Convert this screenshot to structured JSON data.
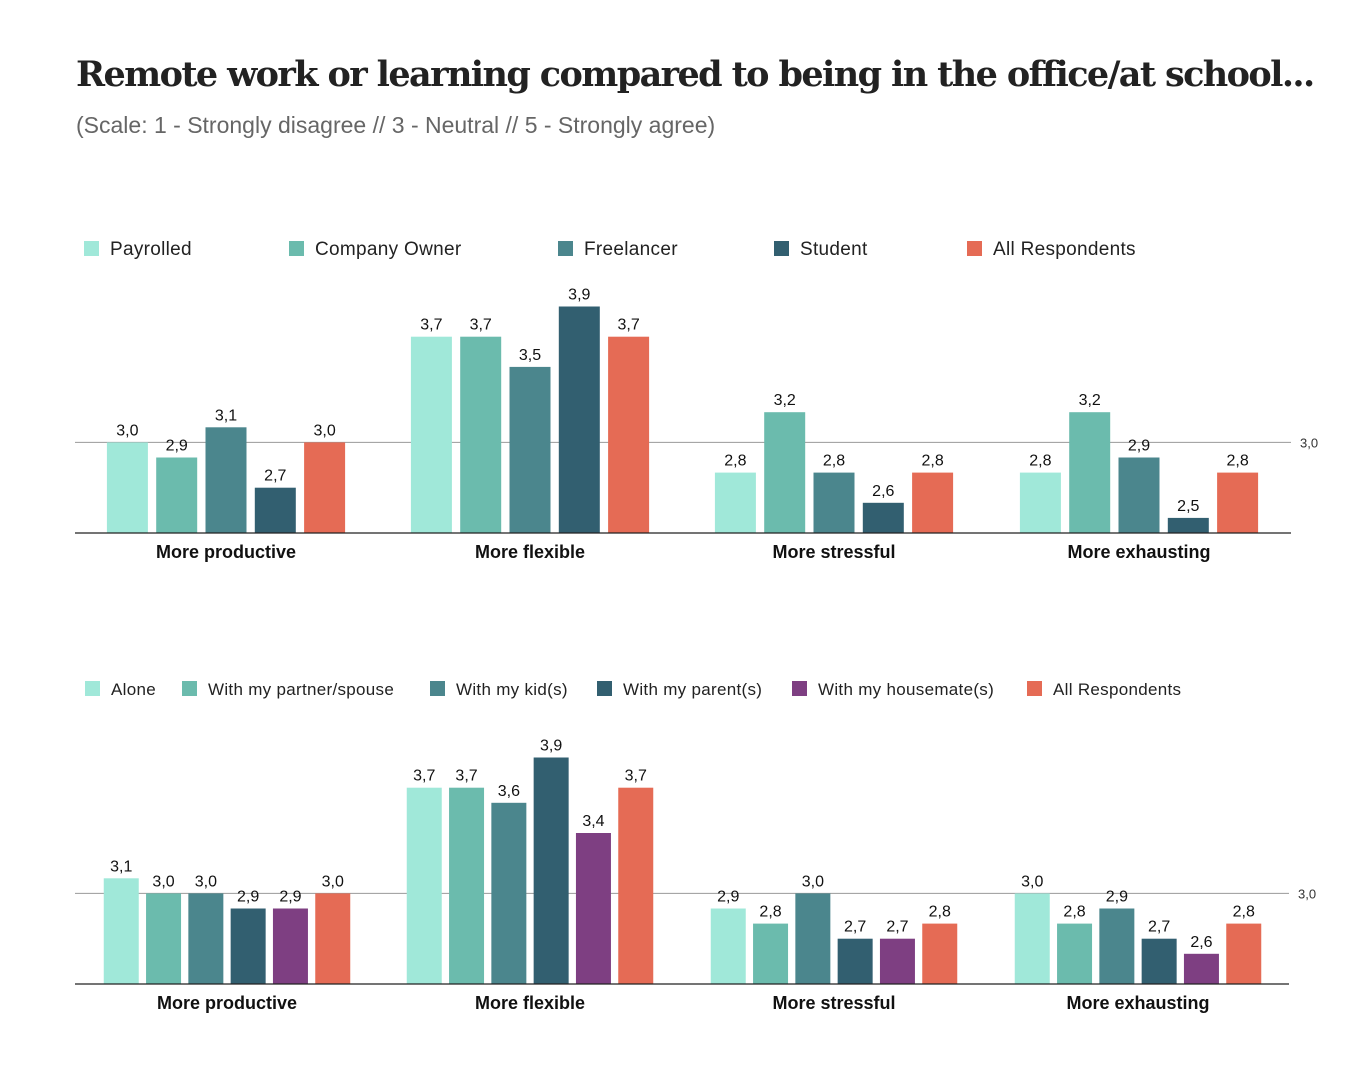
{
  "title": "Remote work or learning compared to being in the office/at school...",
  "subtitle": "(Scale: 1 - Strongly disagree //  3 - Neutral  //  5 - Strongly agree)",
  "chart_data": [
    {
      "type": "bar",
      "categories": [
        "More productive",
        "More flexible",
        "More stressful",
        "More exhausting"
      ],
      "reference_line": {
        "value": 3.0,
        "label": "3,0"
      },
      "ylim": [
        2.4,
        4.0
      ],
      "grid": false,
      "legend": "top",
      "series": [
        {
          "name": "Payrolled",
          "color": "#a0e8d9",
          "values": [
            3.0,
            3.7,
            2.8,
            2.8
          ],
          "labels": [
            "3,0",
            "3,7",
            "2,8",
            "2,8"
          ]
        },
        {
          "name": "Company Owner",
          "color": "#6bbbad",
          "values": [
            2.9,
            3.7,
            3.2,
            3.2
          ],
          "labels": [
            "2,9",
            "3,7",
            "3,2",
            "3,2"
          ]
        },
        {
          "name": "Freelancer",
          "color": "#4b868d",
          "values": [
            3.1,
            3.5,
            2.8,
            2.9
          ],
          "labels": [
            "3,1",
            "3,5",
            "2,8",
            "2,9"
          ]
        },
        {
          "name": "Student",
          "color": "#325f70",
          "values": [
            2.7,
            3.9,
            2.6,
            2.5
          ],
          "labels": [
            "2,7",
            "3,9",
            "2,6",
            "2,5"
          ]
        },
        {
          "name": "All Respondents",
          "color": "#e56b55",
          "values": [
            3.0,
            3.7,
            2.8,
            2.8
          ],
          "labels": [
            "3,0",
            "3,7",
            "2,8",
            "2,8"
          ]
        }
      ]
    },
    {
      "type": "bar",
      "categories": [
        "More productive",
        "More flexible",
        "More stressful",
        "More exhausting"
      ],
      "reference_line": {
        "value": 3.0,
        "label": "3,0"
      },
      "ylim": [
        2.4,
        4.0
      ],
      "grid": false,
      "legend": "top",
      "series": [
        {
          "name": "Alone",
          "color": "#a0e8d9",
          "values": [
            3.1,
            3.7,
            2.9,
            3.0
          ],
          "labels": [
            "3,1",
            "3,7",
            "2,9",
            "3,0"
          ]
        },
        {
          "name": "With my partner/spouse",
          "color": "#6bbbad",
          "values": [
            3.0,
            3.7,
            2.8,
            2.8
          ],
          "labels": [
            "3,0",
            "3,7",
            "2,8",
            "2,8"
          ]
        },
        {
          "name": "With my kid(s)",
          "color": "#4b868d",
          "values": [
            3.0,
            3.6,
            3.0,
            2.9
          ],
          "labels": [
            "3,0",
            "3,6",
            "3,0",
            "2,9"
          ]
        },
        {
          "name": "With my parent(s)",
          "color": "#325f70",
          "values": [
            2.9,
            3.9,
            2.7,
            2.7
          ],
          "labels": [
            "2,9",
            "3,9",
            "2,7",
            "2,7"
          ]
        },
        {
          "name": "With my housemate(s)",
          "color": "#7e3f82",
          "values": [
            2.9,
            3.4,
            2.7,
            2.6
          ],
          "labels": [
            "2,9",
            "3,4",
            "2,7",
            "2,6"
          ]
        },
        {
          "name": "All Respondents",
          "color": "#e56b55",
          "values": [
            3.0,
            3.7,
            2.8,
            2.8
          ],
          "labels": [
            "3,0",
            "3,7",
            "2,8",
            "2,8"
          ]
        }
      ]
    }
  ]
}
